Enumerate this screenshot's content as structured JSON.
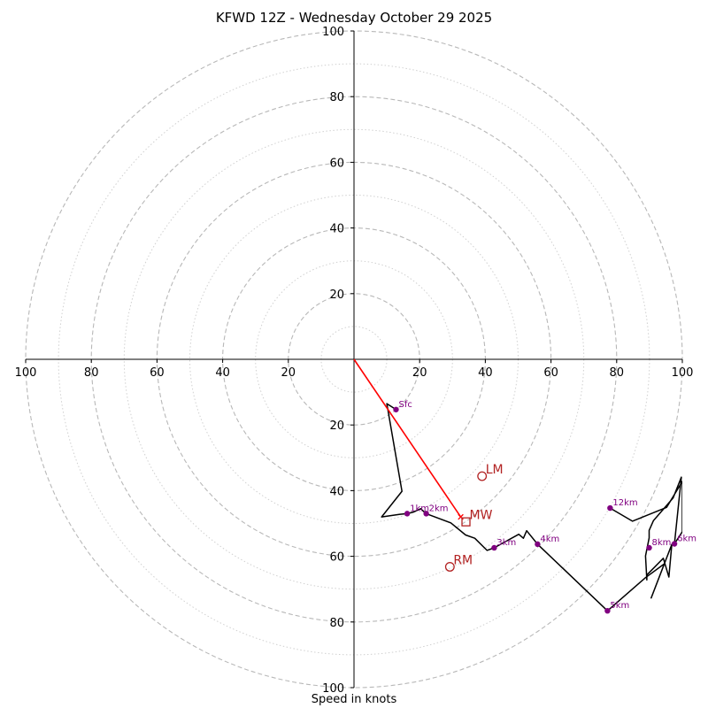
{
  "chart_data": {
    "type": "hodograph",
    "title": "KFWD 12Z - Wednesday October 29 2025",
    "xlabel": "Speed in knots",
    "range": [
      -100,
      100
    ],
    "major_rings": [
      20,
      40,
      60,
      80,
      100
    ],
    "minor_rings": [
      10,
      30,
      50,
      70,
      90
    ],
    "x_ticks": [
      {
        "value": -100,
        "label": "100"
      },
      {
        "value": -80,
        "label": "80"
      },
      {
        "value": -60,
        "label": "60"
      },
      {
        "value": -40,
        "label": "40"
      },
      {
        "value": -20,
        "label": "20"
      },
      {
        "value": 20,
        "label": "20"
      },
      {
        "value": 40,
        "label": "40"
      },
      {
        "value": 60,
        "label": "60"
      },
      {
        "value": 80,
        "label": "80"
      },
      {
        "value": 100,
        "label": "100"
      }
    ],
    "y_ticks": [
      {
        "value": 100,
        "label": "100"
      },
      {
        "value": 80,
        "label": "80"
      },
      {
        "value": 60,
        "label": "60"
      },
      {
        "value": 40,
        "label": "40"
      },
      {
        "value": 20,
        "label": "20"
      },
      {
        "value": -20,
        "label": "20"
      },
      {
        "value": -40,
        "label": "40"
      },
      {
        "value": -60,
        "label": "60"
      },
      {
        "value": -80,
        "label": "80"
      },
      {
        "value": -100,
        "label": "100"
      }
    ],
    "hodograph_trace": [
      [
        10,
        -13.5
      ],
      [
        12.8,
        -15.3
      ],
      [
        10,
        -13.5
      ],
      [
        14.6,
        -40.2
      ],
      [
        8.4,
        -48
      ],
      [
        14,
        -47.2
      ],
      [
        16.2,
        -47
      ],
      [
        18.2,
        -46.5
      ],
      [
        20.3,
        -45.5
      ],
      [
        22,
        -47
      ],
      [
        29.5,
        -49.8
      ],
      [
        34,
        -53.5
      ],
      [
        36.8,
        -54.5
      ],
      [
        40.5,
        -58.2
      ],
      [
        42.7,
        -57.4
      ],
      [
        50.2,
        -53.3
      ],
      [
        51.6,
        -54.5
      ],
      [
        52.6,
        -52.2
      ],
      [
        55.9,
        -56.3
      ],
      [
        77.2,
        -76.6
      ],
      [
        88.8,
        -66.5
      ],
      [
        94.5,
        -62.3
      ],
      [
        90.5,
        -72.7
      ],
      [
        96.8,
        -56.4
      ],
      [
        95.9,
        -66.3
      ],
      [
        95.6,
        -65.3
      ],
      [
        94.2,
        -60.6
      ],
      [
        89.2,
        -65.7
      ],
      [
        89.2,
        -67.2
      ],
      [
        88.8,
        -59.9
      ],
      [
        89.9,
        -54.4
      ],
      [
        89.9,
        -52.1
      ],
      [
        91.2,
        -49.1
      ],
      [
        97.2,
        -42.2
      ],
      [
        99.7,
        -35.9
      ],
      [
        97.6,
        -56.2
      ],
      [
        100,
        -52.5
      ],
      [
        100,
        -37.2
      ],
      [
        95.2,
        -45.1
      ],
      [
        84.8,
        -49.3
      ],
      [
        78,
        -45.3
      ]
    ],
    "height_markers": [
      {
        "label": "Sfc",
        "u": 12.8,
        "v": -15.3
      },
      {
        "label": "1km",
        "u": 16.2,
        "v": -47
      },
      {
        "label": "2km",
        "u": 22,
        "v": -47
      },
      {
        "label": "3km",
        "u": 42.7,
        "v": -57.4
      },
      {
        "label": "4km",
        "u": 55.9,
        "v": -56.3
      },
      {
        "label": "5km",
        "u": 77.2,
        "v": -76.6
      },
      {
        "label": "8km",
        "u": 89.9,
        "v": -57.4
      },
      {
        "label": "6km",
        "u": 97.6,
        "v": -56.2
      },
      {
        "label": "12km",
        "u": 78,
        "v": -45.3
      }
    ],
    "storm_motions": [
      {
        "label": "LM",
        "u": 39,
        "v": -35.6,
        "marker": "circle"
      },
      {
        "label": "RM",
        "u": 29.2,
        "v": -63.2,
        "marker": "circle"
      },
      {
        "label": "MW",
        "u": 34.1,
        "v": -49.5,
        "marker": "square"
      }
    ],
    "storm_vector": {
      "from": [
        0,
        0
      ],
      "to": [
        32.5,
        -48
      ]
    },
    "colors": {
      "trace": "#000000",
      "markers": "#800080",
      "storm_motion": "#b22222",
      "vector": "#ff0000",
      "major_ring": "#b8b8b8",
      "minor_ring": "#d0d0d0"
    }
  }
}
